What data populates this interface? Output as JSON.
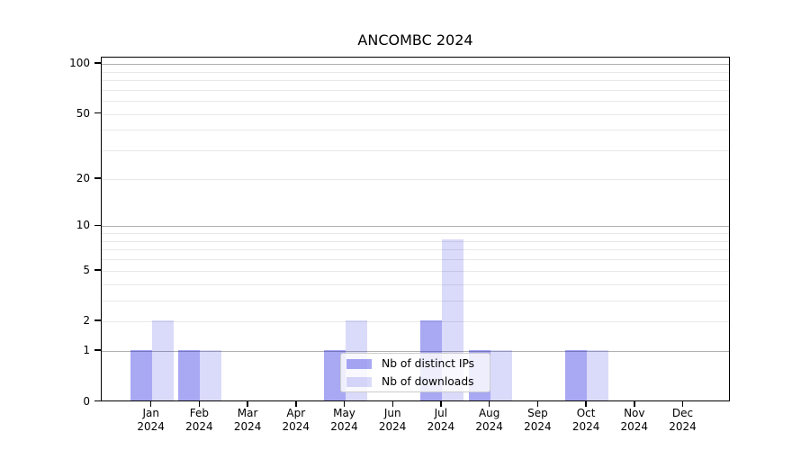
{
  "chart_data": {
    "type": "bar",
    "title": "ANCOMBC 2024",
    "x_year": "2024",
    "categories": [
      "Jan",
      "Feb",
      "Mar",
      "Apr",
      "May",
      "Jun",
      "Jul",
      "Aug",
      "Sep",
      "Oct",
      "Nov",
      "Dec"
    ],
    "series": [
      {
        "name": "Nb of distinct IPs",
        "color": "rgba(0,0,220,0.34)",
        "color_hex": "#a8a8f4",
        "values": [
          1,
          1,
          0,
          0,
          1,
          0,
          2,
          1,
          0,
          1,
          0,
          0
        ]
      },
      {
        "name": "Nb of downloads",
        "color": "rgba(0,0,220,0.145)",
        "color_hex": "#dbdbf8",
        "values": [
          2,
          1,
          0,
          0,
          2,
          0,
          8,
          1,
          0,
          1,
          0,
          0
        ]
      }
    ],
    "y_ticks": [
      0,
      1,
      2,
      5,
      10,
      20,
      50,
      100
    ],
    "scale": "log10(1+y)",
    "ylim": [
      0,
      110
    ],
    "major_gridlines": [
      1,
      10,
      100
    ],
    "minor_gridlines": [
      2,
      3,
      4,
      5,
      6,
      7,
      8,
      9,
      20,
      30,
      40,
      50,
      60,
      70,
      80,
      90
    ],
    "grid": true,
    "legend_position": "lower center"
  },
  "colors": {
    "background": "#ffffff",
    "axis": "#000000",
    "major_grid": "#b0b0b0",
    "minor_grid": "#e8e8e8",
    "legend_border": "#cccccc"
  }
}
